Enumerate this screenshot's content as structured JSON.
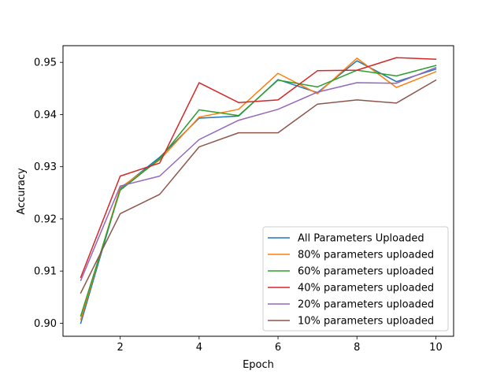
{
  "chart_data": {
    "type": "line",
    "xlabel": "Epoch",
    "ylabel": "Accuracy",
    "x": [
      1,
      2,
      3,
      4,
      5,
      6,
      7,
      8,
      9,
      10
    ],
    "xlim": [
      0.55,
      10.45
    ],
    "ylim": [
      0.8975,
      0.9532
    ],
    "xticks": [
      2,
      4,
      6,
      8,
      10
    ],
    "xtick_labels": [
      "2",
      "4",
      "6",
      "8",
      "10"
    ],
    "yticks": [
      0.9,
      0.91,
      0.92,
      0.93,
      0.94,
      0.95
    ],
    "ytick_labels": [
      "0.90",
      "0.91",
      "0.92",
      "0.93",
      "0.94",
      "0.95"
    ],
    "grid": false,
    "legend_position": "lower-right",
    "series": [
      {
        "name": "All Parameters Uploaded",
        "color": "#1f77b4",
        "values": [
          0.9,
          0.9258,
          0.9318,
          0.9393,
          0.9397,
          0.9467,
          0.9442,
          0.9503,
          0.9463,
          0.9487
        ]
      },
      {
        "name": "80% parameters uploaded",
        "color": "#ff7f0e",
        "values": [
          0.9007,
          0.926,
          0.9313,
          0.9395,
          0.941,
          0.9479,
          0.944,
          0.9508,
          0.9452,
          0.9482
        ]
      },
      {
        "name": "60% parameters uploaded",
        "color": "#2ca02c",
        "values": [
          0.9014,
          0.9255,
          0.9315,
          0.9409,
          0.9398,
          0.9466,
          0.9453,
          0.9485,
          0.9474,
          0.9494
        ]
      },
      {
        "name": "40% parameters uploaded",
        "color": "#d62728",
        "values": [
          0.9088,
          0.9282,
          0.9307,
          0.9461,
          0.9423,
          0.9428,
          0.9484,
          0.9485,
          0.9509,
          0.9506
        ]
      },
      {
        "name": "20% parameters uploaded",
        "color": "#9467bd",
        "values": [
          0.9082,
          0.9263,
          0.9282,
          0.9352,
          0.9389,
          0.941,
          0.9443,
          0.9461,
          0.946,
          0.949
        ]
      },
      {
        "name": "10% parameters uploaded",
        "color": "#8c564b",
        "values": [
          0.9058,
          0.921,
          0.9247,
          0.9338,
          0.9365,
          0.9365,
          0.942,
          0.9428,
          0.9422,
          0.9466
        ]
      }
    ]
  }
}
